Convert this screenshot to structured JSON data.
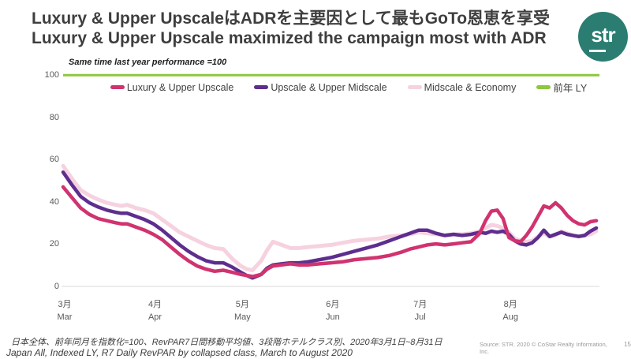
{
  "slide": {
    "title_ja": "Luxury & Upper UpscaleはADRを主要因として最もGoTo恩恵を享受",
    "title_en": "Luxury & Upper Upscale maximized the campaign most with ADR",
    "logo_text": "str",
    "footnote_ja": "日本全体、前年同月を指数化=100、RevPAR7日間移動平均値、3段階ホテルクラス別、2020年3月1日~8月31日",
    "footnote_en": "Japan All, Indexed LY, R7 Daily RevPAR by collapsed class, March to August 2020",
    "source": "Source: STR. 2020 © CoStar Realty Information, Inc.",
    "page_number": "15"
  },
  "colors": {
    "logo_teal": "#2b7d72",
    "title_text": "#3e3e3e",
    "axis_text": "#595959",
    "zero_line": "#d8d8d8"
  },
  "chart_data": {
    "type": "line",
    "title": "Same time last year performance =100",
    "grid": "off",
    "legend_position": "top-center",
    "y_axis": {
      "min": 0,
      "max": 100,
      "ticks": [
        0,
        20,
        40,
        60,
        80,
        100
      ]
    },
    "x_axis": {
      "tick_labels_ja": [
        "3月",
        "4月",
        "5月",
        "6月",
        "7月",
        "8月"
      ],
      "tick_labels_en": [
        "Mar",
        "Apr",
        "May",
        "Jun",
        "Jul",
        "Aug"
      ],
      "tick_day_offsets": [
        0,
        31,
        61,
        92,
        122,
        153
      ],
      "total_days": 183
    },
    "reference_line": {
      "label": "前年 LY",
      "value": 100,
      "color": "#8dc63f"
    },
    "legend": [
      "Luxury & Upper Upscale",
      "Upscale & Upper Midscale",
      "Midscale & Economy",
      "前年 LY"
    ],
    "days": [
      0,
      3,
      6,
      9,
      12,
      15,
      18,
      20,
      22,
      25,
      28,
      31,
      34,
      37,
      40,
      43,
      46,
      49,
      52,
      55,
      58,
      61,
      63,
      65,
      68,
      70,
      72,
      75,
      78,
      81,
      84,
      88,
      92,
      96,
      100,
      104,
      108,
      112,
      116,
      119,
      122,
      125,
      128,
      131,
      134,
      137,
      140,
      143,
      145,
      147,
      149,
      151,
      153,
      155,
      157,
      159,
      161,
      163,
      165,
      167,
      169,
      171,
      173,
      175,
      177,
      179,
      181,
      183
    ],
    "series": [
      {
        "name": "Midscale & Economy",
        "color": "#f6d2e0",
        "values": [
          57,
          51,
          45.5,
          43,
          41,
          39.5,
          38.5,
          38,
          38.5,
          37,
          36,
          34.5,
          31.5,
          28.5,
          25.5,
          23.5,
          21.5,
          19.5,
          18,
          17.5,
          13,
          9.5,
          8,
          7.5,
          12,
          17,
          21,
          19.5,
          18,
          18,
          18.5,
          19,
          19.5,
          20.5,
          21.5,
          22,
          22.5,
          23.5,
          24,
          24.5,
          25.5,
          25,
          24.5,
          24,
          24.5,
          24.5,
          25,
          26,
          27.5,
          29,
          28.5,
          27.5,
          25.5,
          22.5,
          21.5,
          21,
          21.5,
          23.5,
          25,
          23.5,
          24,
          26,
          25,
          24,
          23.5,
          24,
          24.5,
          26
        ]
      },
      {
        "name": "Upscale & Upper Midscale",
        "color": "#5d2e8e",
        "values": [
          54,
          48,
          42.5,
          39.5,
          37.5,
          36,
          35,
          34.5,
          34.5,
          33,
          31.5,
          29.5,
          26.5,
          23,
          19.5,
          16.5,
          14,
          12,
          11,
          11,
          9,
          6.5,
          5,
          3.8,
          5.5,
          8.5,
          10,
          10.5,
          11,
          11,
          11.5,
          12.5,
          13.5,
          15,
          16.5,
          18,
          19.5,
          21.5,
          23.5,
          25,
          26.5,
          26.5,
          25,
          24,
          24.5,
          24,
          24.5,
          25.5,
          25,
          26,
          25.5,
          26,
          24.5,
          21.5,
          20,
          19.5,
          20.5,
          23,
          26.5,
          23.5,
          24.5,
          25.5,
          24.5,
          24,
          23.5,
          24,
          26,
          27.5
        ]
      },
      {
        "name": "Luxury & Upper Upscale",
        "color": "#d0336f",
        "values": [
          47,
          42,
          37,
          34,
          32,
          31,
          30,
          29.5,
          29.5,
          28,
          26.5,
          24.5,
          22,
          18.5,
          15,
          12,
          9.5,
          8,
          7,
          7.5,
          6.5,
          5.5,
          5,
          4.5,
          5.5,
          8,
          9.5,
          10,
          10.5,
          10,
          10,
          10.5,
          11,
          11.5,
          12.5,
          13,
          13.5,
          14.5,
          16,
          17.5,
          18.5,
          19.5,
          20,
          19.5,
          20,
          20.5,
          21,
          25,
          31,
          35.5,
          36,
          32,
          23,
          21.5,
          21,
          24,
          28,
          33,
          38,
          37,
          39.5,
          37,
          33.5,
          31,
          29.5,
          29,
          30.5,
          31
        ]
      }
    ]
  }
}
